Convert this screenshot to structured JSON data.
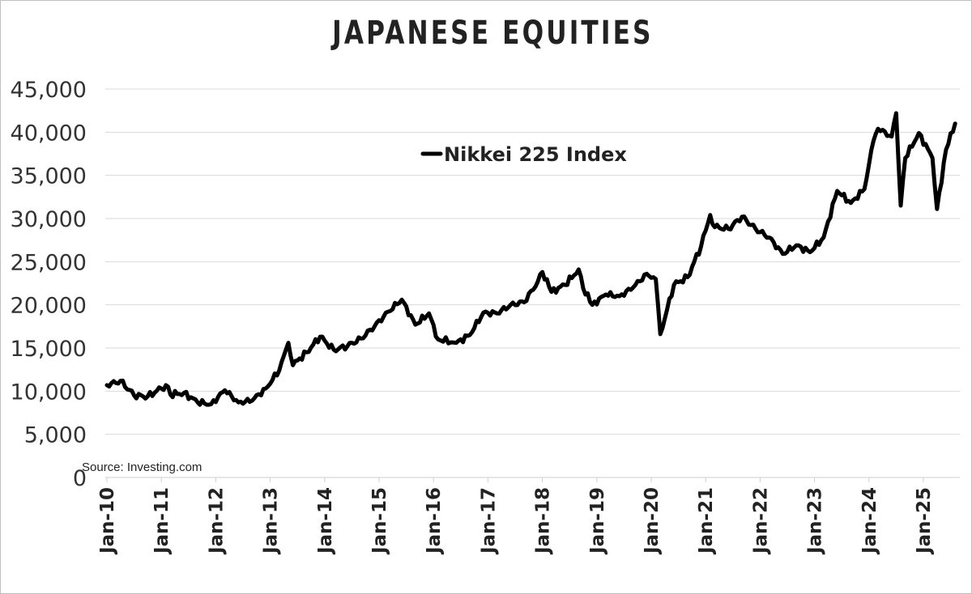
{
  "chart_data": {
    "type": "line",
    "title": "JAPANESE EQUITIES",
    "xlabel": "",
    "ylabel": "",
    "ylim": [
      0,
      45000
    ],
    "yticks": [
      "0",
      "5,000",
      "10,000",
      "15,000",
      "20,000",
      "25,000",
      "30,000",
      "35,000",
      "40,000",
      "45,000"
    ],
    "xticks": [
      "Jan-10",
      "Jan-11",
      "Jan-12",
      "Jan-13",
      "Jan-14",
      "Jan-15",
      "Jan-16",
      "Jan-17",
      "Jan-18",
      "Jan-19",
      "Jan-20",
      "Jan-21",
      "Jan-22",
      "Jan-23",
      "Jan-24",
      "Jan-25"
    ],
    "grid": true,
    "legend_position": "top-center",
    "annotation": "Source: Investing.com",
    "series": [
      {
        "name": "Nikkei 225 Index",
        "color": "#000000",
        "x": [
          "2010-01",
          "2010-04",
          "2010-07",
          "2010-10",
          "2011-01",
          "2011-02",
          "2011-03",
          "2011-06",
          "2011-09",
          "2011-12",
          "2012-03",
          "2012-06",
          "2012-09",
          "2012-12",
          "2013-03",
          "2013-05",
          "2013-06",
          "2013-09",
          "2013-12",
          "2014-03",
          "2014-06",
          "2014-09",
          "2014-12",
          "2015-03",
          "2015-06",
          "2015-09",
          "2015-12",
          "2016-02",
          "2016-06",
          "2016-09",
          "2016-12",
          "2017-03",
          "2017-06",
          "2017-09",
          "2017-12",
          "2018-01",
          "2018-03",
          "2018-06",
          "2018-09",
          "2018-10",
          "2018-12",
          "2019-03",
          "2019-06",
          "2019-09",
          "2019-12",
          "2020-02",
          "2020-03",
          "2020-06",
          "2020-09",
          "2020-12",
          "2021-02",
          "2021-03",
          "2021-06",
          "2021-09",
          "2021-12",
          "2022-03",
          "2022-06",
          "2022-09",
          "2022-12",
          "2023-03",
          "2023-06",
          "2023-09",
          "2023-12",
          "2024-02",
          "2024-03",
          "2024-06",
          "2024-07",
          "2024-08",
          "2024-09",
          "2024-12",
          "2025-03",
          "2025-04",
          "2025-06",
          "2025-08"
        ],
        "values": [
          10700,
          11200,
          9500,
          9400,
          10300,
          10700,
          9600,
          9800,
          8700,
          8500,
          10100,
          8700,
          8900,
          10300,
          12400,
          15600,
          13000,
          14500,
          16300,
          14800,
          15200,
          16100,
          17500,
          19200,
          20600,
          17700,
          19000,
          16000,
          15600,
          16500,
          19100,
          19000,
          20000,
          20300,
          22700,
          23800,
          21500,
          22300,
          24100,
          21900,
          20000,
          21200,
          21000,
          22000,
          23600,
          23000,
          16600,
          22300,
          23200,
          26800,
          30400,
          29000,
          28800,
          30200,
          28800,
          27800,
          25900,
          26900,
          26100,
          27800,
          33200,
          31800,
          33400,
          39000,
          40400,
          39500,
          42200,
          31500,
          37000,
          39900,
          37000,
          31100,
          38000,
          41000
        ]
      }
    ]
  }
}
